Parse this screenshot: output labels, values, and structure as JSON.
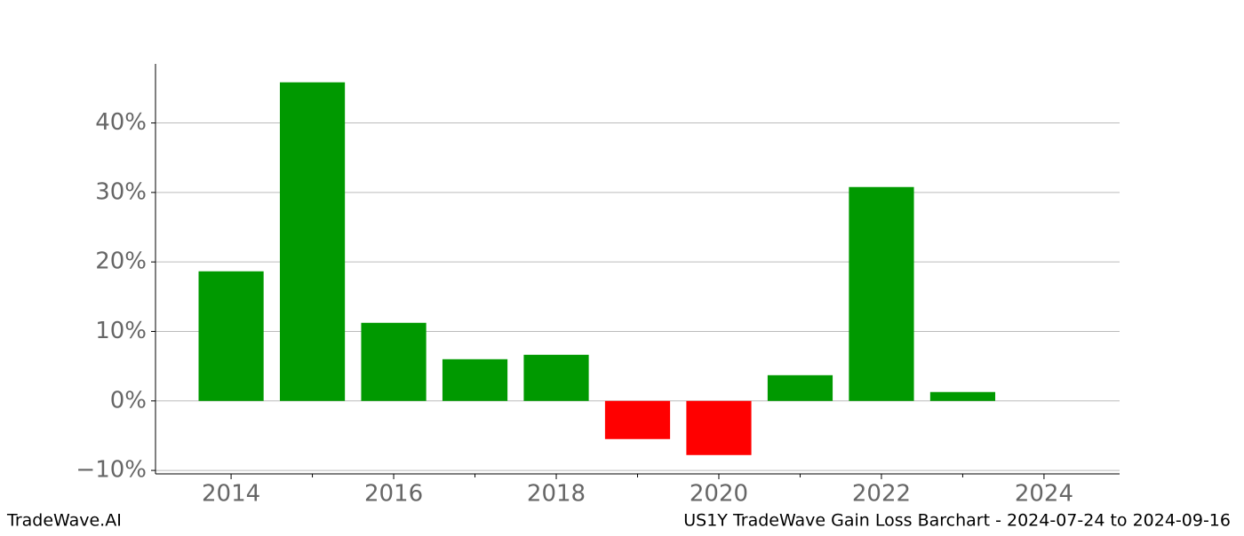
{
  "chart_data": {
    "type": "bar",
    "x": [
      2014,
      2015,
      2016,
      2017,
      2018,
      2019,
      2020,
      2021,
      2022,
      2023
    ],
    "values": [
      18.65,
      45.85,
      11.24,
      6.0,
      6.64,
      -5.49,
      -7.79,
      3.7,
      30.78,
      1.28
    ],
    "color": "#009900",
    "negative_color": "#ff0000",
    "xlim": [
      2013.07,
      2024.93
    ],
    "xticks": [
      2014,
      2016,
      2018,
      2020,
      2022,
      2024
    ],
    "xminorticks": [
      2015,
      2017,
      2019,
      2021,
      2023
    ],
    "ylim": [
      -10.5,
      48.5
    ],
    "yticks": [
      {
        "value": -10,
        "label": "−10%"
      },
      {
        "value": 0,
        "label": "0%"
      },
      {
        "value": 10,
        "label": "10%"
      },
      {
        "value": 20,
        "label": "20%"
      },
      {
        "value": 30,
        "label": "30%"
      },
      {
        "value": 40,
        "label": "40%"
      }
    ],
    "grid": true
  },
  "footer": {
    "left": "TradeWave.AI",
    "right": "US1Y TradeWave Gain Loss Barchart - 2024-07-24 to 2024-09-16"
  }
}
